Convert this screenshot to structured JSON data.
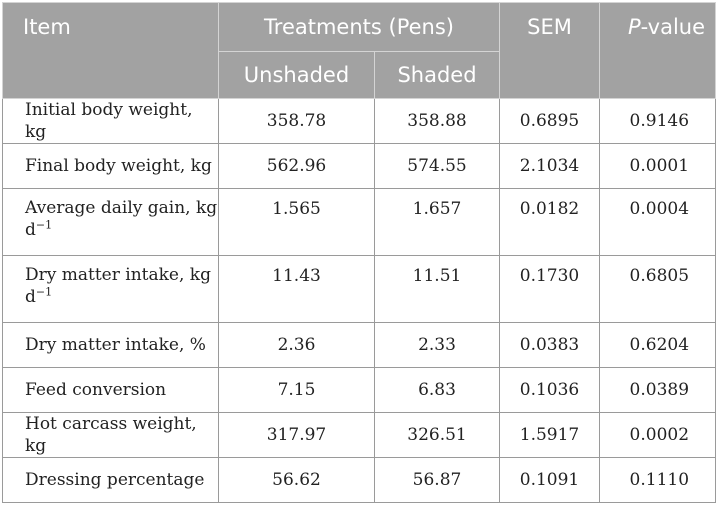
{
  "header": {
    "item": "Item",
    "treatments": "Treatments (Pens)",
    "unshaded": "Unshaded",
    "shaded": "Shaded",
    "sem": "SEM",
    "p_prefix": "P",
    "p_suffix": "-value"
  },
  "rows": [
    {
      "item": "Initial body weight, kg",
      "unshaded": "358.78",
      "shaded": "358.88",
      "sem": "0.6895",
      "p": "0.9146"
    },
    {
      "item": "Final body weight, kg",
      "unshaded": "562.96",
      "shaded": "574.55",
      "sem": "2.1034",
      "p": "0.0001"
    },
    {
      "item": "Average daily gain, kg",
      "item_line2": "d",
      "item_sup": "−1",
      "unshaded": "1.565",
      "shaded": "1.657",
      "sem": "0.0182",
      "p": "0.0004"
    },
    {
      "item": "Dry matter intake, kg",
      "item_line2": "d",
      "item_sup": "−1",
      "unshaded": "11.43",
      "shaded": "11.51",
      "sem": "0.1730",
      "p": "0.6805"
    },
    {
      "item": "Dry matter intake, %",
      "unshaded": "2.36",
      "shaded": "2.33",
      "sem": "0.0383",
      "p": "0.6204"
    },
    {
      "item": "Feed conversion",
      "unshaded": "7.15",
      "shaded": "6.83",
      "sem": "0.1036",
      "p": "0.0389"
    },
    {
      "item": "Hot carcass weight, kg",
      "unshaded": "317.97",
      "shaded": "326.51",
      "sem": "1.5917",
      "p": "0.0002"
    },
    {
      "item": "Dressing percentage",
      "unshaded": "56.62",
      "shaded": "56.87",
      "sem": "0.1091",
      "p": "0.1110"
    }
  ]
}
